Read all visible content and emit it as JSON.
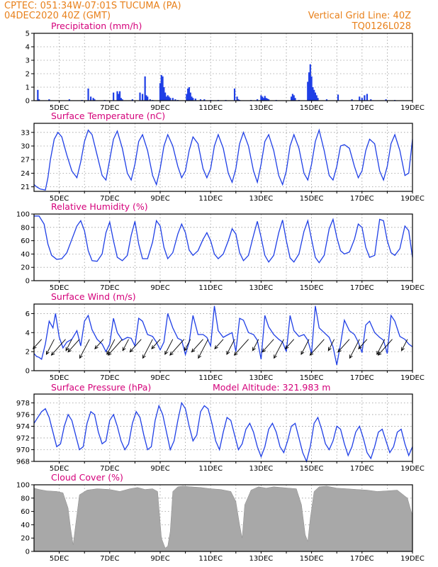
{
  "header": {
    "line1": "CPTEC:   051:34W-07:01S   TUCUMA (PA)",
    "line2": "04DEC2020 40Z (GMT)",
    "grid_note": "Vertical Grid Line: 40Z",
    "code": "TQ0126L028"
  },
  "colors": {
    "header": "#e8801a",
    "titles": "#d4007a",
    "series": "#1f3fe6",
    "cloud": "#a8a8a8"
  },
  "chart_data": [
    {
      "type": "bar",
      "title": "Precipitation (mm/h)",
      "ylim": [
        0,
        5
      ],
      "yticks": [
        0,
        1,
        2,
        3,
        4,
        5
      ],
      "xlim": [
        4.0,
        19.0
      ],
      "xticks": [
        5,
        7,
        9,
        11,
        13,
        15,
        17,
        19
      ],
      "xticklabels": [
        "5DEC",
        "7DEC",
        "9DEC",
        "11DEC",
        "13DEC",
        "15DEC",
        "17DEC",
        "19DEC"
      ],
      "x": [
        4.15,
        4.2,
        4.6,
        5.4,
        5.9,
        6.15,
        6.25,
        6.35,
        6.4,
        6.8,
        7.15,
        7.3,
        7.35,
        7.4,
        7.45,
        7.5,
        7.9,
        8.2,
        8.3,
        8.4,
        8.45,
        8.5,
        8.6,
        8.7,
        9.0,
        9.05,
        9.1,
        9.15,
        9.2,
        9.25,
        9.3,
        9.35,
        9.4,
        9.5,
        9.6,
        9.7,
        10.05,
        10.1,
        10.15,
        10.2,
        10.25,
        10.3,
        10.4,
        10.6,
        10.75,
        11.0,
        11.3,
        11.6,
        11.95,
        12.05,
        12.1,
        12.15,
        12.6,
        12.85,
        13.0,
        13.05,
        13.1,
        13.15,
        13.2,
        13.25,
        13.3,
        13.6,
        14.2,
        14.25,
        14.3,
        14.35,
        14.5,
        14.85,
        14.9,
        14.95,
        15.0,
        15.05,
        15.1,
        15.15,
        15.2,
        15.25,
        15.6,
        16.05,
        16.6,
        16.9,
        17.0,
        17.1,
        17.2,
        17.35,
        17.95,
        18.3
      ],
      "values": [
        0.8,
        0.1,
        0.1,
        0.1,
        0.05,
        0.9,
        0.3,
        0.2,
        0.1,
        0.05,
        0.6,
        0.7,
        0.5,
        0.7,
        0.2,
        0.1,
        0.1,
        0.6,
        0.5,
        1.8,
        0.4,
        0.3,
        0.1,
        0.05,
        1.3,
        1.9,
        1.8,
        1.0,
        0.6,
        0.3,
        0.4,
        0.3,
        0.2,
        0.2,
        0.1,
        0.05,
        0.5,
        0.9,
        1.0,
        0.6,
        0.3,
        0.2,
        0.15,
        0.1,
        0.1,
        0.05,
        0.05,
        0.05,
        0.9,
        0.3,
        0.1,
        0.05,
        0.05,
        0.1,
        0.4,
        0.3,
        0.2,
        0.35,
        0.2,
        0.15,
        0.1,
        0.05,
        0.3,
        0.5,
        0.4,
        0.2,
        0.05,
        1.4,
        2.1,
        2.7,
        1.8,
        1.0,
        0.8,
        0.6,
        0.4,
        0.2,
        0.1,
        0.45,
        0.1,
        0.3,
        0.2,
        0.4,
        0.5,
        0.1,
        0.1,
        0.05
      ]
    },
    {
      "type": "line",
      "title": "Surface Temperature (nC)",
      "ylim": [
        20,
        35
      ],
      "yticks": [
        21,
        24,
        27,
        30,
        33
      ],
      "xlim": [
        4.0,
        19.0
      ],
      "xticks": [
        5,
        7,
        9,
        11,
        13,
        15,
        17,
        19
      ],
      "xticklabels": [
        "5DEC",
        "7DEC",
        "9DEC",
        "11DEC",
        "13DEC",
        "15DEC",
        "17DEC",
        "19DEC"
      ],
      "x": [
        4.0,
        4.1,
        4.25,
        4.45,
        4.55,
        4.65,
        4.8,
        4.95,
        5.1,
        5.3,
        5.5,
        5.7,
        5.85,
        6.0,
        6.15,
        6.3,
        6.5,
        6.7,
        6.85,
        7.0,
        7.15,
        7.3,
        7.5,
        7.7,
        7.85,
        8.0,
        8.15,
        8.3,
        8.5,
        8.7,
        8.85,
        9.0,
        9.15,
        9.3,
        9.5,
        9.7,
        9.85,
        10.0,
        10.15,
        10.3,
        10.5,
        10.7,
        10.85,
        11.0,
        11.15,
        11.3,
        11.5,
        11.7,
        11.85,
        12.0,
        12.15,
        12.3,
        12.5,
        12.7,
        12.85,
        13.0,
        13.15,
        13.3,
        13.5,
        13.7,
        13.85,
        14.0,
        14.15,
        14.3,
        14.5,
        14.7,
        14.85,
        15.0,
        15.15,
        15.3,
        15.5,
        15.7,
        15.85,
        16.0,
        16.15,
        16.3,
        16.5,
        16.7,
        16.85,
        17.0,
        17.15,
        17.3,
        17.5,
        17.7,
        17.85,
        18.0,
        18.15,
        18.3,
        18.5,
        18.7,
        18.85,
        19.0
      ],
      "values": [
        21.5,
        21.0,
        20.5,
        20.3,
        23.0,
        27.0,
        31.5,
        33.0,
        32.0,
        28.0,
        24.5,
        23.0,
        26.5,
        31.0,
        33.5,
        32.5,
        28.0,
        23.5,
        22.5,
        27.0,
        31.5,
        33.3,
        29.5,
        24.0,
        22.5,
        26.0,
        31.0,
        32.5,
        29.0,
        23.5,
        21.5,
        25.0,
        30.0,
        32.5,
        30.0,
        25.5,
        23.0,
        24.5,
        29.0,
        32.0,
        30.5,
        25.0,
        23.0,
        25.0,
        30.0,
        32.5,
        29.5,
        24.0,
        22.0,
        25.0,
        30.5,
        33.0,
        30.0,
        24.5,
        22.0,
        26.0,
        31.0,
        32.5,
        29.0,
        23.5,
        21.5,
        24.5,
        30.0,
        32.5,
        29.5,
        24.0,
        22.5,
        26.0,
        31.0,
        33.5,
        29.0,
        23.5,
        22.5,
        25.5,
        30.0,
        30.3,
        29.5,
        25.5,
        23.0,
        24.5,
        29.0,
        31.5,
        30.5,
        24.5,
        22.5,
        25.5,
        30.5,
        32.5,
        29.0,
        23.5,
        24.0,
        31.5
      ]
    },
    {
      "type": "line",
      "title": "Relative Humidity (%)",
      "ylim": [
        0,
        100
      ],
      "yticks": [
        0,
        20,
        40,
        60,
        80,
        100
      ],
      "xlim": [
        4.0,
        19.0
      ],
      "xticks": [
        5,
        7,
        9,
        11,
        13,
        15,
        17,
        19
      ],
      "xticklabels": [
        "5DEC",
        "7DEC",
        "9DEC",
        "11DEC",
        "13DEC",
        "15DEC",
        "17DEC",
        "19DEC"
      ],
      "x": [
        4.0,
        4.2,
        4.4,
        4.55,
        4.7,
        4.9,
        5.1,
        5.3,
        5.5,
        5.7,
        5.85,
        6.0,
        6.15,
        6.3,
        6.5,
        6.7,
        6.85,
        7.0,
        7.15,
        7.3,
        7.5,
        7.7,
        7.85,
        8.0,
        8.15,
        8.3,
        8.5,
        8.7,
        8.85,
        9.0,
        9.15,
        9.3,
        9.5,
        9.7,
        9.85,
        10.0,
        10.15,
        10.3,
        10.5,
        10.7,
        10.85,
        11.0,
        11.15,
        11.3,
        11.5,
        11.7,
        11.85,
        12.0,
        12.15,
        12.3,
        12.5,
        12.7,
        12.85,
        13.0,
        13.15,
        13.3,
        13.5,
        13.7,
        13.85,
        14.0,
        14.15,
        14.3,
        14.5,
        14.7,
        14.85,
        15.0,
        15.15,
        15.3,
        15.5,
        15.7,
        15.85,
        16.0,
        16.15,
        16.3,
        16.5,
        16.7,
        16.85,
        17.0,
        17.15,
        17.3,
        17.5,
        17.7,
        17.85,
        18.0,
        18.15,
        18.3,
        18.5,
        18.7,
        18.85,
        19.0
      ],
      "values": [
        97,
        97,
        85,
        55,
        38,
        32,
        33,
        42,
        62,
        82,
        90,
        75,
        45,
        30,
        29,
        40,
        72,
        88,
        60,
        35,
        30,
        38,
        68,
        89,
        55,
        33,
        33,
        58,
        90,
        82,
        50,
        33,
        42,
        70,
        85,
        72,
        46,
        38,
        45,
        62,
        72,
        60,
        40,
        33,
        40,
        60,
        78,
        70,
        42,
        30,
        38,
        68,
        89,
        65,
        38,
        28,
        38,
        72,
        91,
        60,
        34,
        28,
        40,
        74,
        90,
        62,
        35,
        27,
        38,
        78,
        92,
        65,
        45,
        40,
        43,
        62,
        85,
        80,
        50,
        35,
        38,
        92,
        90,
        60,
        42,
        38,
        48,
        82,
        75,
        35
      ]
    },
    {
      "type": "line",
      "title": "Surface Wind (m/s)",
      "ylim": [
        0,
        7
      ],
      "yticks": [
        0,
        2,
        4,
        6
      ],
      "xlim": [
        4.0,
        19.0
      ],
      "xticks": [
        5,
        7,
        9,
        11,
        13,
        15,
        17,
        19
      ],
      "xticklabels": [
        "5DEC",
        "7DEC",
        "9DEC",
        "11DEC",
        "13DEC",
        "15DEC",
        "17DEC",
        "19DEC"
      ],
      "x": [
        4.0,
        4.1,
        4.2,
        4.3,
        4.45,
        4.6,
        4.75,
        4.85,
        5.0,
        5.15,
        5.3,
        5.5,
        5.7,
        5.85,
        6.0,
        6.15,
        6.3,
        6.5,
        6.7,
        6.85,
        7.0,
        7.15,
        7.3,
        7.5,
        7.7,
        7.85,
        8.0,
        8.15,
        8.3,
        8.5,
        8.7,
        8.85,
        9.0,
        9.15,
        9.3,
        9.5,
        9.7,
        9.85,
        10.0,
        10.15,
        10.3,
        10.5,
        10.7,
        10.85,
        11.0,
        11.15,
        11.3,
        11.5,
        11.7,
        11.85,
        12.0,
        12.15,
        12.3,
        12.5,
        12.7,
        12.85,
        13.0,
        13.15,
        13.3,
        13.5,
        13.7,
        13.85,
        14.0,
        14.15,
        14.3,
        14.5,
        14.7,
        14.85,
        15.0,
        15.15,
        15.3,
        15.5,
        15.7,
        15.85,
        16.0,
        16.15,
        16.3,
        16.5,
        16.7,
        16.85,
        17.0,
        17.15,
        17.3,
        17.5,
        17.7,
        17.85,
        18.0,
        18.15,
        18.3,
        18.5,
        18.7,
        18.85,
        19.0
      ],
      "values": [
        1.8,
        1.5,
        1.4,
        1.2,
        2.8,
        5.2,
        4.5,
        6.0,
        3.5,
        2.4,
        3.0,
        3.3,
        4.2,
        2.6,
        5.2,
        5.8,
        4.3,
        3.3,
        2.8,
        2.0,
        2.8,
        5.5,
        4.0,
        3.2,
        3.5,
        3.4,
        2.6,
        5.5,
        5.2,
        3.8,
        3.6,
        3.0,
        2.2,
        3.0,
        6.0,
        4.5,
        3.4,
        3.2,
        1.7,
        3.0,
        5.8,
        3.8,
        3.8,
        3.5,
        2.6,
        6.8,
        4.2,
        3.5,
        3.8,
        4.0,
        2.0,
        5.5,
        5.3,
        4.0,
        3.8,
        3.2,
        1.2,
        5.8,
        4.6,
        3.8,
        3.3,
        3.0,
        2.0,
        5.8,
        4.2,
        3.6,
        3.8,
        3.2,
        1.8,
        6.8,
        4.5,
        4.0,
        3.5,
        2.5,
        0.6,
        2.8,
        5.3,
        4.2,
        3.8,
        3.0,
        1.9,
        4.8,
        5.2,
        4.0,
        3.5,
        3.2,
        1.8,
        5.8,
        5.2,
        3.6,
        3.3,
        2.8,
        2.5
      ],
      "barbs": {
        "x": [
          4.3,
          4.8,
          5.25,
          5.5,
          5.8,
          6.2,
          6.75,
          7.2,
          7.5,
          7.75,
          8.25,
          8.7,
          9.0,
          9.5,
          9.95,
          10.2,
          10.7,
          10.9,
          11.5,
          11.95,
          12.5,
          12.9,
          13.5,
          13.9,
          14.3,
          14.9,
          15.5,
          15.9,
          16.5,
          16.9,
          17.2,
          17.9,
          18.2,
          18.8
        ]
      }
    },
    {
      "type": "line",
      "title": "Surface Pressure (hPa)",
      "annotation": "Model Altitude: 321.983 m",
      "ylim": [
        968,
        979.5
      ],
      "yticks": [
        968,
        970,
        972,
        974,
        976,
        978
      ],
      "xlim": [
        4.0,
        19.0
      ],
      "xticks": [
        5,
        7,
        9,
        11,
        13,
        15,
        17,
        19
      ],
      "xticklabels": [
        "5DEC",
        "7DEC",
        "9DEC",
        "11DEC",
        "13DEC",
        "15DEC",
        "17DEC",
        "19DEC"
      ],
      "x": [
        4.0,
        4.15,
        4.3,
        4.45,
        4.6,
        4.75,
        4.9,
        5.05,
        5.2,
        5.35,
        5.5,
        5.65,
        5.8,
        5.95,
        6.1,
        6.25,
        6.4,
        6.55,
        6.7,
        6.85,
        7.0,
        7.15,
        7.3,
        7.45,
        7.6,
        7.75,
        7.9,
        8.05,
        8.2,
        8.35,
        8.5,
        8.65,
        8.8,
        8.95,
        9.1,
        9.25,
        9.4,
        9.55,
        9.7,
        9.85,
        10.0,
        10.15,
        10.3,
        10.45,
        10.6,
        10.75,
        10.9,
        11.05,
        11.2,
        11.35,
        11.5,
        11.65,
        11.8,
        11.95,
        12.1,
        12.25,
        12.4,
        12.55,
        12.7,
        12.85,
        13.0,
        13.15,
        13.3,
        13.45,
        13.6,
        13.75,
        13.9,
        14.05,
        14.2,
        14.35,
        14.5,
        14.65,
        14.8,
        14.95,
        15.1,
        15.25,
        15.4,
        15.55,
        15.7,
        15.85,
        16.0,
        16.15,
        16.3,
        16.45,
        16.6,
        16.75,
        16.9,
        17.05,
        17.2,
        17.35,
        17.5,
        17.65,
        17.8,
        17.95,
        18.1,
        18.25,
        18.4,
        18.55,
        18.7,
        18.85,
        19.0
      ],
      "values": [
        974.5,
        975.5,
        976.5,
        977.0,
        975.5,
        973.0,
        970.5,
        971.0,
        974.0,
        976.0,
        975.0,
        972.5,
        970.0,
        970.5,
        974.5,
        976.5,
        976.0,
        973.0,
        971.0,
        971.5,
        975.0,
        976.0,
        974.0,
        971.5,
        970.0,
        971.0,
        974.5,
        976.5,
        975.5,
        972.5,
        970.0,
        970.5,
        975.0,
        977.5,
        976.0,
        973.0,
        970.0,
        971.5,
        975.0,
        978.0,
        977.0,
        974.0,
        971.5,
        972.5,
        976.5,
        977.5,
        977.0,
        974.5,
        971.5,
        970.0,
        973.0,
        975.5,
        975.0,
        972.5,
        970.0,
        971.0,
        973.5,
        974.5,
        973.0,
        970.5,
        968.8,
        970.5,
        973.5,
        974.5,
        973.0,
        970.5,
        969.5,
        971.5,
        974.0,
        974.5,
        972.0,
        969.5,
        968.0,
        970.5,
        974.5,
        975.5,
        973.5,
        971.0,
        970.0,
        971.5,
        974.0,
        973.5,
        971.0,
        969.0,
        970.5,
        973.0,
        974.0,
        972.0,
        969.5,
        968.5,
        970.5,
        973.0,
        973.5,
        971.5,
        969.5,
        970.5,
        973.0,
        973.5,
        971.0,
        969.0,
        970.5
      ]
    },
    {
      "type": "area",
      "title": "Cloud Cover (%)",
      "ylim": [
        0,
        100
      ],
      "yticks": [
        0,
        20,
        40,
        60,
        80,
        100
      ],
      "xlim": [
        4.0,
        19.0
      ],
      "xticks": [
        5,
        7,
        9,
        11,
        13,
        15,
        17,
        19
      ],
      "xticklabels": [
        "5DEC",
        "7DEC",
        "9DEC",
        "11DEC",
        "13DEC",
        "15DEC",
        "17DEC",
        "19DEC"
      ],
      "x": [
        4.0,
        4.2,
        4.5,
        4.9,
        5.15,
        5.35,
        5.45,
        5.55,
        5.65,
        5.8,
        6.1,
        6.5,
        7.0,
        7.4,
        7.8,
        8.1,
        8.4,
        8.7,
        8.9,
        9.05,
        9.2,
        9.3,
        9.4,
        9.5,
        9.7,
        9.9,
        10.2,
        10.6,
        11.0,
        11.4,
        11.8,
        12.0,
        12.15,
        12.25,
        12.35,
        12.6,
        12.9,
        13.2,
        13.5,
        13.8,
        14.1,
        14.4,
        14.6,
        14.75,
        14.85,
        14.95,
        15.1,
        15.3,
        15.6,
        16.0,
        16.4,
        16.8,
        17.2,
        17.6,
        18.0,
        18.4,
        18.8,
        18.95,
        19.0
      ],
      "values": [
        95,
        93,
        91,
        90,
        88,
        65,
        35,
        10,
        40,
        85,
        92,
        94,
        93,
        90,
        94,
        96,
        93,
        94,
        90,
        20,
        5,
        8,
        30,
        90,
        97,
        98,
        97,
        96,
        94,
        93,
        90,
        75,
        40,
        20,
        70,
        92,
        97,
        95,
        97,
        96,
        95,
        94,
        70,
        25,
        15,
        50,
        90,
        97,
        98,
        95,
        94,
        93,
        92,
        90,
        91,
        92,
        80,
        60,
        55
      ]
    }
  ]
}
